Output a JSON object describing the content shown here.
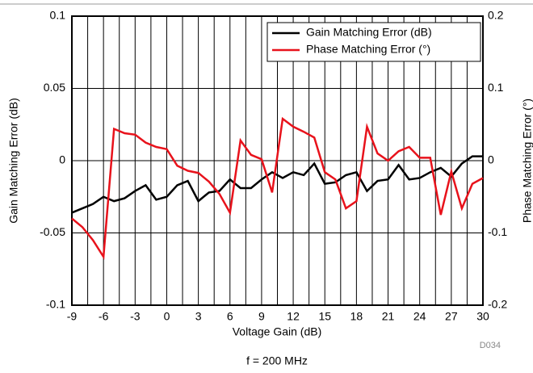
{
  "chart_data": {
    "type": "line",
    "xlabel": "Voltage Gain (dB)",
    "ylabel": "Gain Matching Error (dB)",
    "y2label": "Phase Matching Error (°)",
    "caption": "f = 200 MHz",
    "code": "D034",
    "x": [
      -9,
      -8,
      -7,
      -6,
      -5,
      -4,
      -3,
      -2,
      -1,
      0,
      1,
      2,
      3,
      4,
      5,
      6,
      7,
      8,
      9,
      10,
      11,
      12,
      13,
      14,
      15,
      16,
      17,
      18,
      19,
      20,
      21,
      22,
      23,
      24,
      25,
      26,
      27,
      28,
      29,
      30
    ],
    "series": [
      {
        "name": "Gain Matching Error (dB)",
        "color": "#000000",
        "values": [
          -0.036,
          -0.033,
          -0.03,
          -0.025,
          -0.028,
          -0.026,
          -0.021,
          -0.017,
          -0.027,
          -0.025,
          -0.017,
          -0.014,
          -0.028,
          -0.022,
          -0.021,
          -0.013,
          -0.019,
          -0.019,
          -0.013,
          -0.008,
          -0.012,
          -0.008,
          -0.01,
          -0.002,
          -0.016,
          -0.015,
          -0.01,
          -0.008,
          -0.021,
          -0.014,
          -0.013,
          -0.003,
          -0.013,
          -0.012,
          -0.008,
          -0.005,
          -0.011,
          -0.002,
          0.003,
          0.003
        ]
      },
      {
        "name": "Phase Matching Error (°)",
        "color": "#e8121b",
        "axis": "y2",
        "values": [
          -0.08,
          -0.092,
          -0.11,
          -0.133,
          0.044,
          0.038,
          0.036,
          0.025,
          0.019,
          0.016,
          -0.007,
          -0.014,
          -0.017,
          -0.029,
          -0.046,
          -0.072,
          0.028,
          0.008,
          0.002,
          -0.044,
          0.058,
          0.047,
          0.04,
          0.032,
          -0.016,
          -0.026,
          -0.066,
          -0.056,
          0.047,
          0.01,
          0,
          0.013,
          0.019,
          0.004,
          0.004,
          -0.075,
          -0.015,
          -0.066,
          -0.032,
          -0.024
        ]
      }
    ],
    "xlim": [
      -9,
      30
    ],
    "xticks": [
      -9,
      -6,
      -3,
      0,
      3,
      6,
      9,
      12,
      15,
      18,
      21,
      24,
      27,
      30
    ],
    "xminorticks": [
      -7.5,
      -4.5,
      -1.5,
      1.5,
      4.5,
      7.5,
      10.5,
      13.5,
      16.5,
      19.5,
      22.5,
      25.5,
      28.5
    ],
    "ylim": [
      -0.1,
      0.1
    ],
    "yticks": [
      -0.1,
      -0.05,
      0,
      0.05,
      0.1
    ],
    "y2lim": [
      -0.2,
      0.2
    ],
    "y2ticks": [
      -0.2,
      -0.1,
      0,
      0.1,
      0.2
    ],
    "grid": true,
    "legend": "upper right"
  }
}
